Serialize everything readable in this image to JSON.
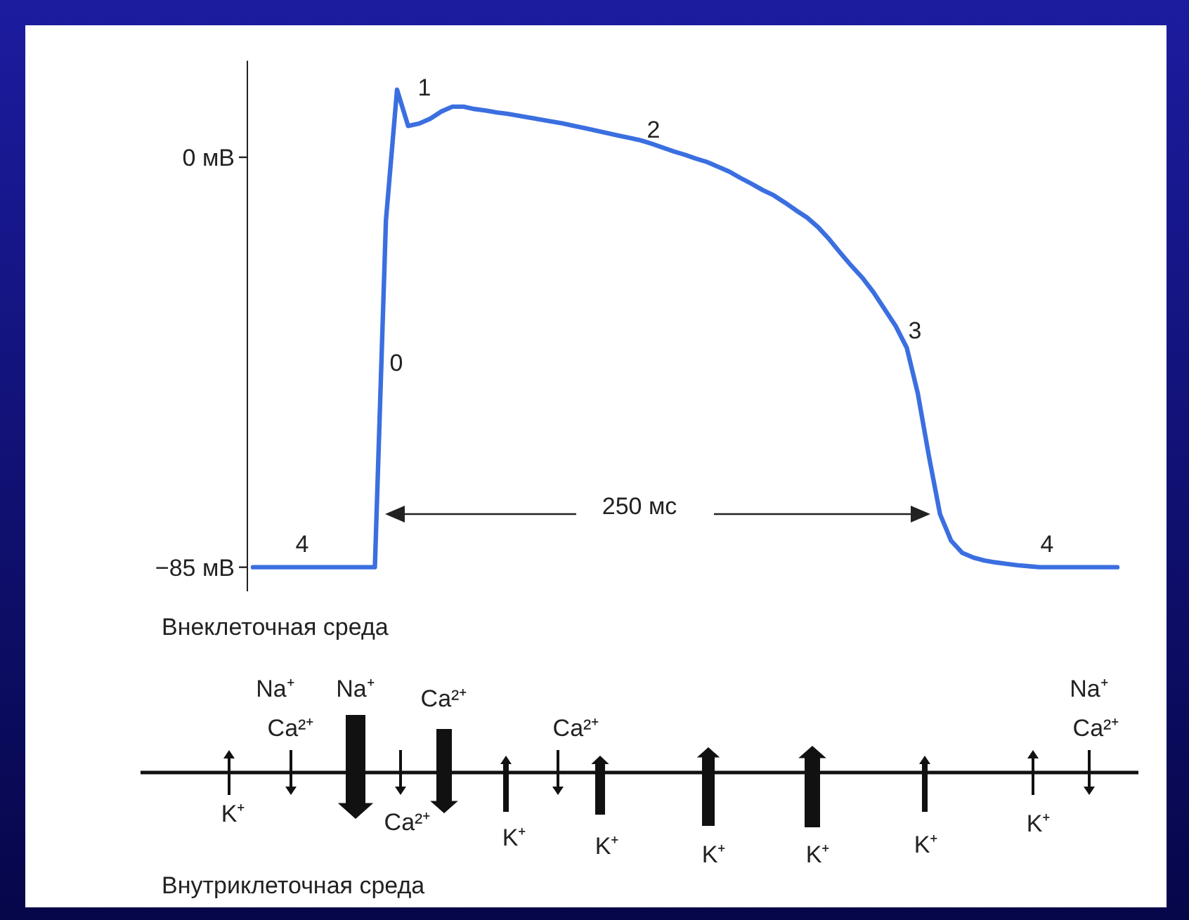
{
  "chart_data": {
    "type": "line",
    "categories": [
      null,
      null,
      null,
      null,
      null,
      null,
      null,
      null,
      null,
      null,
      null,
      null,
      null,
      null,
      null,
      null,
      null,
      null,
      null,
      null,
      null,
      null,
      null,
      null,
      null,
      null,
      null,
      null,
      null,
      null,
      null,
      null,
      null,
      null,
      null,
      null,
      null,
      null,
      null,
      null,
      null,
      null,
      null,
      null,
      null,
      null,
      null,
      null,
      null,
      null,
      null,
      null,
      null,
      null,
      null,
      null,
      null,
      null,
      null,
      null,
      null,
      null,
      null,
      null,
      null,
      null,
      null,
      null,
      null,
      null,
      null,
      null,
      null,
      null,
      null,
      null,
      null,
      null,
      null
    ],
    "series": [
      {
        "color": "#3b6fe0",
        "values": [
          -85,
          -85,
          -85,
          -85,
          -85,
          -85,
          -85,
          -85,
          -85,
          -85,
          -85,
          -85,
          -13,
          14,
          6.5,
          7,
          8,
          9.5,
          10.5,
          10.5,
          10,
          9.7,
          9.3,
          9,
          8.6,
          8.2,
          7.8,
          7.4,
          7,
          6.5,
          6,
          5.5,
          5,
          4.5,
          4,
          3.5,
          2.8,
          2,
          1.2,
          0.5,
          -0.3,
          -1,
          -2,
          -3,
          -4.3,
          -5.5,
          -6.8,
          -7.9,
          -9.4,
          -11,
          -12.5,
          -14.5,
          -17,
          -19.8,
          -22.5,
          -25,
          -28,
          -31.5,
          -35,
          -39.5,
          -49,
          -62,
          -74,
          -79.5,
          -82,
          -83,
          -83.6,
          -84,
          -84.3,
          -84.6,
          -84.8,
          -85,
          -85,
          -85,
          -85,
          -85,
          -85,
          -85,
          -85
        ]
      }
    ],
    "ylim": [
      -90,
      20
    ],
    "yticks": [
      {
        "value": 0,
        "label": "0 мВ"
      },
      {
        "value": -85,
        "label": "−85 мВ"
      }
    ],
    "tick_labels": "y",
    "grid": false,
    "marker": "none",
    "line_style": "solid",
    "annotations": [
      "1",
      "2",
      "3",
      "0",
      "4",
      "4",
      "250 мс",
      "Внеклеточная среда",
      "Na⁺",
      "Ca²⁺",
      "Na⁺",
      "Ca²⁺",
      "Ca²⁺",
      "Na⁺",
      "Ca²⁺",
      "K⁺",
      "Ca²⁺",
      "K⁺",
      "K⁺",
      "K⁺",
      "K⁺",
      "K⁺",
      "K⁺",
      "Внутриклеточная среда"
    ]
  }
}
